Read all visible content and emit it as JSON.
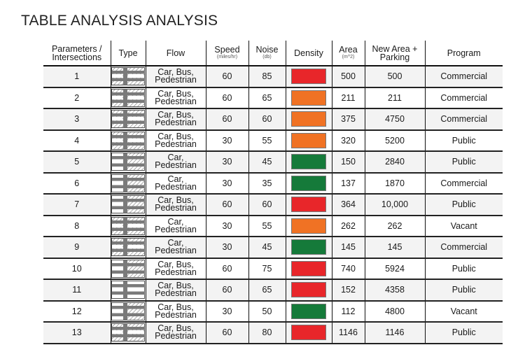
{
  "title": "TABLE ANALYSIS ANALYSIS",
  "colors": {
    "high": "#e8262a",
    "medium": "#f07224",
    "low": "#157a3a"
  },
  "headers": {
    "params": "Parameters / Intersections",
    "type": "Type",
    "flow": "Flow",
    "speed": "Speed",
    "speed_unit": "(miles/hr)",
    "noise": "Noise",
    "noise_unit": "(db)",
    "density": "Density",
    "area": "Area",
    "area_unit": "(m^2)",
    "new_area": "New Area + Parking",
    "program": "Program"
  },
  "rows": [
    {
      "id": "1",
      "flow": [
        "Car, Bus,",
        "Pedestrian"
      ],
      "speed": "60",
      "noise": "85",
      "density": "high",
      "area": "500",
      "new_area": "500",
      "program": "Commercial",
      "type_icon": "intersection-icon"
    },
    {
      "id": "2",
      "flow": [
        "Car, Bus,",
        "Pedestrian"
      ],
      "speed": "60",
      "noise": "65",
      "density": "medium",
      "area": "211",
      "new_area": "211",
      "program": "Commercial",
      "type_icon": "intersection-icon"
    },
    {
      "id": "3",
      "flow": [
        "Car, Bus,",
        "Pedestrian"
      ],
      "speed": "60",
      "noise": "60",
      "density": "medium",
      "area": "375",
      "new_area": "4750",
      "program": "Commercial",
      "type_icon": "intersection-icon"
    },
    {
      "id": "4",
      "flow": [
        "Car, Bus,",
        "Pedestrian"
      ],
      "speed": "30",
      "noise": "55",
      "density": "medium",
      "area": "320",
      "new_area": "5200",
      "program": "Public",
      "type_icon": "intersection-icon"
    },
    {
      "id": "5",
      "flow": [
        "Car,",
        "Pedestrian"
      ],
      "speed": "30",
      "noise": "45",
      "density": "low",
      "area": "150",
      "new_area": "2840",
      "program": "Public",
      "type_icon": "intersection-icon"
    },
    {
      "id": "6",
      "flow": [
        "Car,",
        "Pedestrian"
      ],
      "speed": "30",
      "noise": "35",
      "density": "low",
      "area": "137",
      "new_area": "1870",
      "program": "Commercial",
      "type_icon": "intersection-icon"
    },
    {
      "id": "7",
      "flow": [
        "Car, Bus,",
        "Pedestrian"
      ],
      "speed": "60",
      "noise": "60",
      "density": "high",
      "area": "364",
      "new_area": "10,000",
      "program": "Public",
      "type_icon": "intersection-icon"
    },
    {
      "id": "8",
      "flow": [
        "Car,",
        "Pedestrian"
      ],
      "speed": "30",
      "noise": "55",
      "density": "medium",
      "area": "262",
      "new_area": "262",
      "program": "Vacant",
      "type_icon": "intersection-icon"
    },
    {
      "id": "9",
      "flow": [
        "Car,",
        "Pedestrian"
      ],
      "speed": "30",
      "noise": "45",
      "density": "low",
      "area": "145",
      "new_area": "145",
      "program": "Commercial",
      "type_icon": "intersection-icon"
    },
    {
      "id": "10",
      "flow": [
        "Car, Bus,",
        "Pedestrian"
      ],
      "speed": "60",
      "noise": "75",
      "density": "high",
      "area": "740",
      "new_area": "5924",
      "program": "Public",
      "type_icon": "intersection-icon"
    },
    {
      "id": "11",
      "flow": [
        "Car, Bus,",
        "Pedestrian"
      ],
      "speed": "60",
      "noise": "65",
      "density": "high",
      "area": "152",
      "new_area": "4358",
      "program": "Public",
      "type_icon": "intersection-icon"
    },
    {
      "id": "12",
      "flow": [
        "Car, Bus,",
        "Pedestrian"
      ],
      "speed": "30",
      "noise": "50",
      "density": "low",
      "area": "112",
      "new_area": "4800",
      "program": "Vacant",
      "type_icon": "intersection-icon"
    },
    {
      "id": "13",
      "flow": [
        "Car, Bus,",
        "Pedestrian"
      ],
      "speed": "60",
      "noise": "80",
      "density": "high",
      "area": "1146",
      "new_area": "1146",
      "program": "Public",
      "type_icon": "intersection-icon"
    }
  ]
}
